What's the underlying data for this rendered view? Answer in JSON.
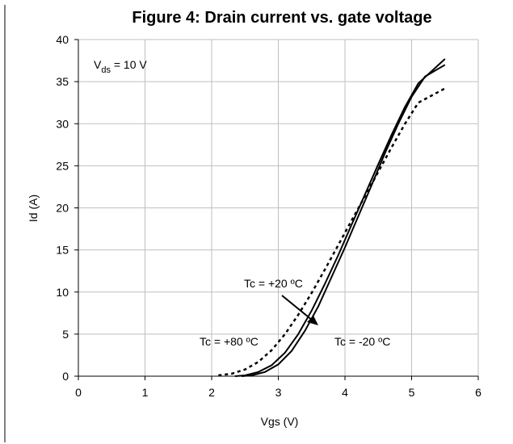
{
  "chart_data": {
    "type": "line",
    "title": "Figure 4: Drain current vs. gate voltage",
    "xlabel": "Vgs (V)",
    "ylabel": "Id (A)",
    "xlim": [
      0,
      6
    ],
    "ylim": [
      0,
      40
    ],
    "x_ticks": [
      "0",
      "1",
      "2",
      "3",
      "4",
      "5",
      "6"
    ],
    "y_ticks": [
      "0",
      "5",
      "10",
      "15",
      "20",
      "25",
      "30",
      "35",
      "40"
    ],
    "grid": true,
    "annotation_vds": {
      "main": "V",
      "sub": "ds",
      "rest": " =  10 V"
    },
    "series": [
      {
        "name": "Tc = -20 ºC",
        "style": "solid",
        "color": "#000000",
        "points": [
          [
            2.45,
            0
          ],
          [
            2.6,
            0.1
          ],
          [
            2.8,
            0.5
          ],
          [
            3.0,
            1.4
          ],
          [
            3.2,
            3.0
          ],
          [
            3.4,
            5.4
          ],
          [
            3.6,
            8.3
          ],
          [
            3.8,
            11.8
          ],
          [
            4.0,
            15.3
          ],
          [
            4.2,
            19.0
          ],
          [
            4.4,
            22.7
          ],
          [
            4.6,
            26.5
          ],
          [
            4.8,
            30.0
          ],
          [
            5.0,
            33.2
          ],
          [
            5.2,
            35.6
          ],
          [
            5.5,
            37.0
          ]
        ]
      },
      {
        "name": "Tc = +20 ºC",
        "style": "solid",
        "color": "#000000",
        "points": [
          [
            2.35,
            0
          ],
          [
            2.5,
            0.1
          ],
          [
            2.7,
            0.5
          ],
          [
            2.9,
            1.3
          ],
          [
            3.1,
            2.8
          ],
          [
            3.3,
            5.0
          ],
          [
            3.5,
            7.8
          ],
          [
            3.7,
            11.0
          ],
          [
            3.9,
            14.4
          ],
          [
            4.1,
            18.0
          ],
          [
            4.3,
            21.6
          ],
          [
            4.5,
            25.2
          ],
          [
            4.7,
            28.7
          ],
          [
            4.9,
            32.0
          ],
          [
            5.1,
            34.8
          ],
          [
            5.5,
            37.7
          ]
        ]
      },
      {
        "name": "Tc = +80 ºC",
        "style": "dashed",
        "color": "#000000",
        "points": [
          [
            2.1,
            0.1
          ],
          [
            2.3,
            0.3
          ],
          [
            2.5,
            0.8
          ],
          [
            2.7,
            1.7
          ],
          [
            2.9,
            3.1
          ],
          [
            3.1,
            5.0
          ],
          [
            3.3,
            7.3
          ],
          [
            3.5,
            9.9
          ],
          [
            3.7,
            12.7
          ],
          [
            3.9,
            15.6
          ],
          [
            4.1,
            18.5
          ],
          [
            4.3,
            21.4
          ],
          [
            4.5,
            24.3
          ],
          [
            4.7,
            27.2
          ],
          [
            4.9,
            30.0
          ],
          [
            5.1,
            32.5
          ],
          [
            5.5,
            34.2
          ]
        ]
      }
    ],
    "labels": [
      {
        "text": "Tc = +20 ºC",
        "series": "Tc = +20 ºC"
      },
      {
        "text": "Tc = +80 ºC",
        "series": "Tc = +80 ºC"
      },
      {
        "text": "Tc = -20 ºC",
        "series": "Tc = -20 ºC"
      }
    ]
  }
}
